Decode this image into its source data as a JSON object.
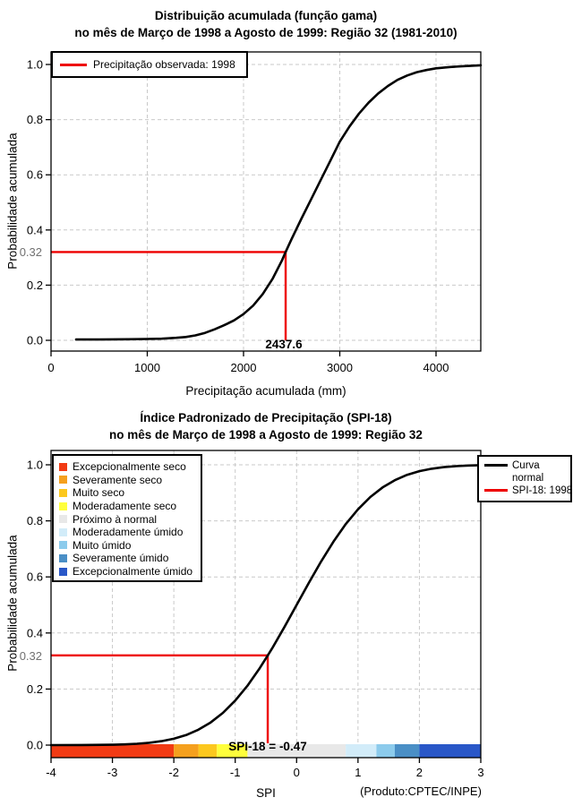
{
  "chart1": {
    "title_line1": "Distribuição acumulada (função gama)",
    "title_line2": "no mês de Março de 1998 a Agosto de 1999: Região 32 (1981-2010)",
    "xlabel": "Precipitação acumulada (mm)",
    "ylabel": "Probabilidade acumulada",
    "legend_label": "Precipitação observada: 1998",
    "marker_x_label": "2437.6",
    "marker_y_label": "0.32"
  },
  "chart2": {
    "title_line1": "Índice Padronizado de Precipitação (SPI-18)",
    "title_line2": "no mês de Março de 1998 a Agosto de 1999: Região 32",
    "xlabel": "SPI",
    "ylabel": "Probabilidade acumulada",
    "marker_label": "SPI-18 = -0.47",
    "marker_y_label": "0.32",
    "legend_curve_line1": "Curva",
    "legend_curve_line2": "normal",
    "legend_spi": "SPI-18: 1998",
    "footer": "(Produto:CPTEC/INPE)"
  },
  "chart_data": [
    {
      "type": "line",
      "title": "Distribuição acumulada (função gama) no mês de Março de 1998 a Agosto de 1999: Região 32 (1981-2010)",
      "xlabel": "Precipitação acumulada (mm)",
      "ylabel": "Probabilidade acumulada",
      "xlim": [
        0,
        4465
      ],
      "ylim": [
        0,
        1
      ],
      "grid": true,
      "legend_position": "top-left",
      "x_ticks": [
        {
          "v": 0,
          "label": "0"
        },
        {
          "v": 1000,
          "label": "1000"
        },
        {
          "v": 2000,
          "label": "2000"
        },
        {
          "v": 3000,
          "label": "3000"
        },
        {
          "v": 4000,
          "label": "4000"
        }
      ],
      "y_ticks": [
        {
          "v": 0,
          "label": "0.0"
        },
        {
          "v": 0.2,
          "label": "0.2"
        },
        {
          "v": 0.4,
          "label": "0.4"
        },
        {
          "v": 0.6,
          "label": "0.6"
        },
        {
          "v": 0.8,
          "label": "0.8"
        },
        {
          "v": 1.0,
          "label": "1.0"
        }
      ],
      "series": [
        {
          "name": "Distribuição acumulada (função gama)",
          "color": "#000000",
          "points": [
            [
              260,
              0.003
            ],
            [
              500,
              0.003
            ],
            [
              800,
              0.004
            ],
            [
              1000,
              0.005
            ],
            [
              1150,
              0.006
            ],
            [
              1300,
              0.009
            ],
            [
              1400,
              0.012
            ],
            [
              1500,
              0.018
            ],
            [
              1600,
              0.027
            ],
            [
              1700,
              0.04
            ],
            [
              1800,
              0.055
            ],
            [
              1900,
              0.072
            ],
            [
              2000,
              0.095
            ],
            [
              2100,
              0.126
            ],
            [
              2200,
              0.168
            ],
            [
              2300,
              0.222
            ],
            [
              2400,
              0.29
            ],
            [
              2437.6,
              0.32
            ],
            [
              2500,
              0.368
            ],
            [
              2600,
              0.44
            ],
            [
              2700,
              0.51
            ],
            [
              2800,
              0.58
            ],
            [
              2900,
              0.65
            ],
            [
              3000,
              0.72
            ],
            [
              3100,
              0.775
            ],
            [
              3200,
              0.822
            ],
            [
              3300,
              0.862
            ],
            [
              3400,
              0.895
            ],
            [
              3500,
              0.922
            ],
            [
              3600,
              0.944
            ],
            [
              3700,
              0.96
            ],
            [
              3800,
              0.972
            ],
            [
              3900,
              0.98
            ],
            [
              4000,
              0.986
            ],
            [
              4150,
              0.991
            ],
            [
              4300,
              0.994
            ],
            [
              4465,
              0.997
            ]
          ]
        }
      ],
      "annotation": {
        "legend": "Precipitação observada: 1998",
        "x": 2437.6,
        "y": 0.32,
        "x_label": "2437.6",
        "y_label": "0.32",
        "color": "#ee0000"
      }
    },
    {
      "type": "line",
      "title": "Índice Padronizado de Precipitação (SPI-18) no mês de Março de 1998 a Agosto de 1999: Região 32",
      "xlabel": "SPI",
      "ylabel": "Probabilidade acumulada",
      "xlim": [
        -4,
        3
      ],
      "ylim": [
        0,
        1
      ],
      "grid": true,
      "footer": "(Produto:CPTEC/INPE)",
      "x_ticks": [
        {
          "v": -4,
          "label": "-4"
        },
        {
          "v": -3,
          "label": "-3"
        },
        {
          "v": -2,
          "label": "-2"
        },
        {
          "v": -1,
          "label": "-1"
        },
        {
          "v": 0,
          "label": "0"
        },
        {
          "v": 1,
          "label": "1"
        },
        {
          "v": 2,
          "label": "2"
        },
        {
          "v": 3,
          "label": "3"
        }
      ],
      "y_ticks": [
        {
          "v": 0,
          "label": "0.0"
        },
        {
          "v": 0.2,
          "label": "0.2"
        },
        {
          "v": 0.4,
          "label": "0.4"
        },
        {
          "v": 0.6,
          "label": "0.6"
        },
        {
          "v": 0.8,
          "label": "0.8"
        },
        {
          "v": 1.0,
          "label": "1.0"
        }
      ],
      "series": [
        {
          "name": "Curva normal",
          "color": "#000000",
          "points": [
            [
              -4,
              0.0
            ],
            [
              -3.5,
              0.0002
            ],
            [
              -3,
              0.0013
            ],
            [
              -2.8,
              0.0026
            ],
            [
              -2.6,
              0.0047
            ],
            [
              -2.4,
              0.0082
            ],
            [
              -2.2,
              0.0139
            ],
            [
              -2,
              0.0228
            ],
            [
              -1.8,
              0.0359
            ],
            [
              -1.6,
              0.0548
            ],
            [
              -1.4,
              0.0808
            ],
            [
              -1.2,
              0.1151
            ],
            [
              -1,
              0.1587
            ],
            [
              -0.8,
              0.2119
            ],
            [
              -0.6,
              0.2743
            ],
            [
              -0.47,
              0.32
            ],
            [
              -0.4,
              0.3446
            ],
            [
              -0.2,
              0.4207
            ],
            [
              0,
              0.5
            ],
            [
              0.2,
              0.5793
            ],
            [
              0.4,
              0.6554
            ],
            [
              0.6,
              0.7257
            ],
            [
              0.8,
              0.7881
            ],
            [
              1,
              0.8413
            ],
            [
              1.2,
              0.8849
            ],
            [
              1.4,
              0.9192
            ],
            [
              1.6,
              0.9452
            ],
            [
              1.8,
              0.9641
            ],
            [
              2,
              0.9772
            ],
            [
              2.2,
              0.9861
            ],
            [
              2.4,
              0.9918
            ],
            [
              2.6,
              0.9953
            ],
            [
              2.8,
              0.9974
            ],
            [
              3,
              0.9987
            ]
          ]
        }
      ],
      "annotation": {
        "legend": "SPI-18: 1998",
        "x": -0.47,
        "y": 0.32,
        "label": "SPI-18 = -0.47",
        "y_label": "0.32",
        "color": "#ee0000"
      },
      "categories": [
        {
          "label": "Excepcionalmente seco",
          "color": "#f23b14",
          "range": [
            -4,
            -2
          ]
        },
        {
          "label": "Severamente seco",
          "color": "#f5a01e",
          "range": [
            -2,
            -1.6
          ]
        },
        {
          "label": "Muito seco",
          "color": "#fcc81e",
          "range": [
            -1.6,
            -1.3
          ]
        },
        {
          "label": "Moderadamente seco",
          "color": "#ffff3c",
          "range": [
            -1.3,
            -0.8
          ]
        },
        {
          "label": "Próximo à normal",
          "color": "#e8e8e8",
          "range": [
            -0.8,
            0.8
          ]
        },
        {
          "label": "Moderadamente úmido",
          "color": "#d2ecf9",
          "range": [
            0.8,
            1.3
          ]
        },
        {
          "label": "Muito úmido",
          "color": "#8ccbec",
          "range": [
            1.3,
            1.6
          ]
        },
        {
          "label": "Severamente úmido",
          "color": "#4a8fc6",
          "range": [
            1.6,
            2
          ]
        },
        {
          "label": "Excepcionalmente úmido",
          "color": "#2957c8",
          "range": [
            2,
            3
          ]
        }
      ]
    }
  ]
}
